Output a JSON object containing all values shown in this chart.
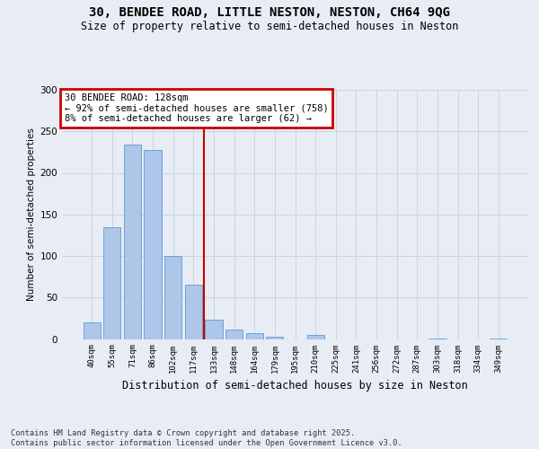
{
  "title1": "30, BENDEE ROAD, LITTLE NESTON, NESTON, CH64 9QG",
  "title2": "Size of property relative to semi-detached houses in Neston",
  "xlabel": "Distribution of semi-detached houses by size in Neston",
  "ylabel": "Number of semi-detached properties",
  "categories": [
    "40sqm",
    "55sqm",
    "71sqm",
    "86sqm",
    "102sqm",
    "117sqm",
    "133sqm",
    "148sqm",
    "164sqm",
    "179sqm",
    "195sqm",
    "210sqm",
    "225sqm",
    "241sqm",
    "256sqm",
    "272sqm",
    "287sqm",
    "303sqm",
    "318sqm",
    "334sqm",
    "349sqm"
  ],
  "values": [
    20,
    135,
    234,
    228,
    100,
    65,
    23,
    11,
    7,
    3,
    0,
    5,
    0,
    0,
    0,
    0,
    0,
    1,
    0,
    0,
    1
  ],
  "bar_color": "#aec6e8",
  "bar_edge_color": "#5b9bd5",
  "vline_pos": 5.5,
  "annotation_line1": "30 BENDEE ROAD: 128sqm",
  "annotation_line2": "← 92% of semi-detached houses are smaller (758)",
  "annotation_line3": "8% of semi-detached houses are larger (62) →",
  "annotation_box_color": "#ffffff",
  "annotation_box_edge_color": "#cc0000",
  "vline_color": "#cc0000",
  "grid_color": "#c8d4e8",
  "background_color": "#e8edf5",
  "footer_text": "Contains HM Land Registry data © Crown copyright and database right 2025.\nContains public sector information licensed under the Open Government Licence v3.0.",
  "ylim_max": 300,
  "yticks": [
    0,
    50,
    100,
    150,
    200,
    250,
    300
  ]
}
